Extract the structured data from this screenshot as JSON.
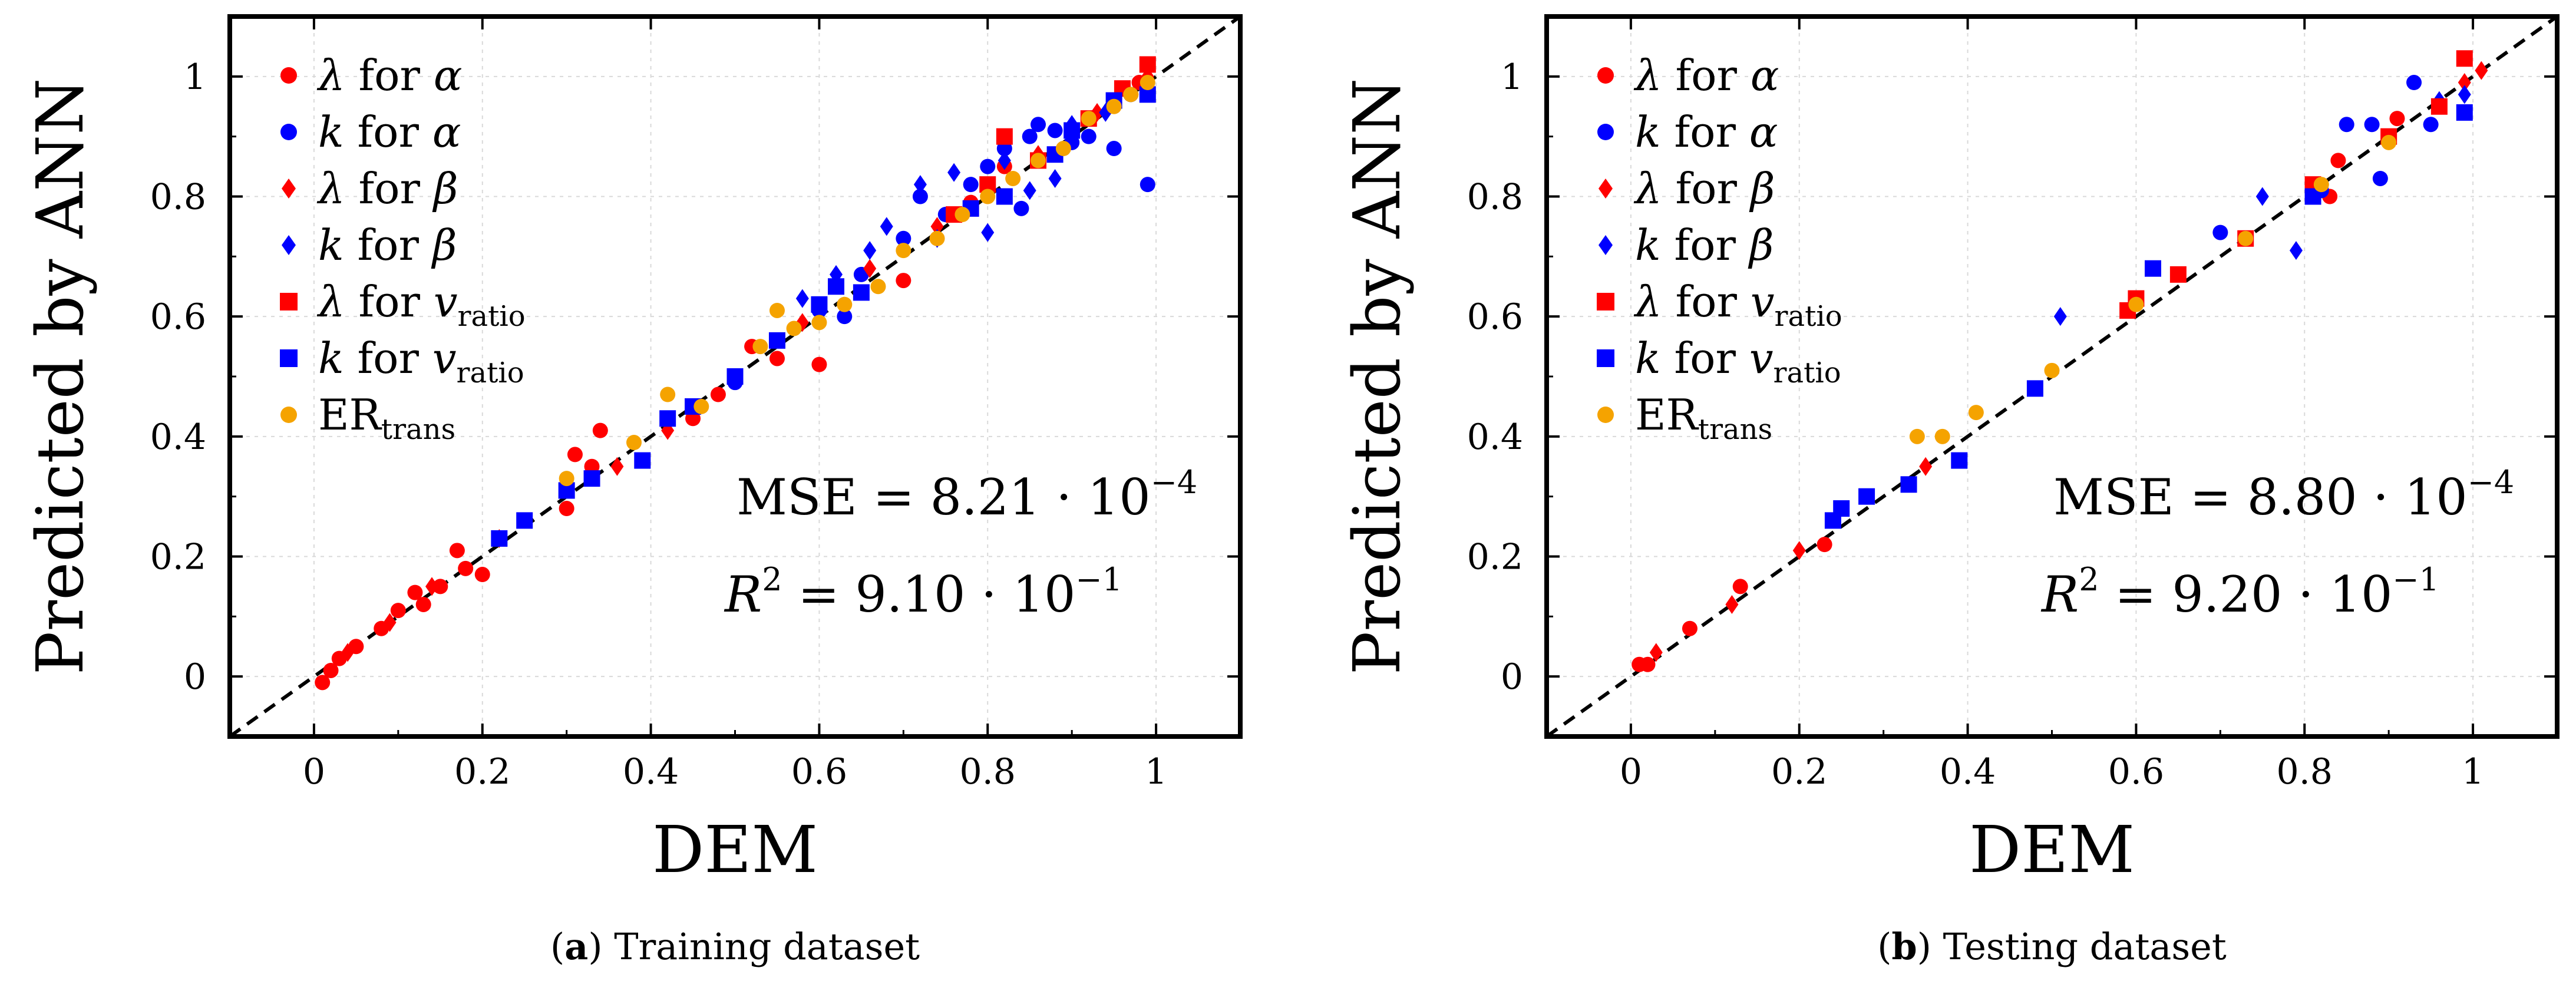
{
  "chart_data": [
    {
      "type": "scatter",
      "title": "",
      "xlabel": "DEM",
      "ylabel": "Predicted by ANN",
      "xlim": [
        -0.1,
        1.1
      ],
      "ylim": [
        -0.1,
        1.1
      ],
      "xticks": [
        "0",
        "0.2",
        "0.4",
        "0.6",
        "0.8",
        "1"
      ],
      "yticks": [
        "0",
        "0.2",
        "0.4",
        "0.6",
        "0.8",
        "1"
      ],
      "grid": true,
      "reference_line": "y = x (dashed)",
      "legend_position": "top-left",
      "caption": {
        "label": "a",
        "text": "Training dataset"
      },
      "stats": {
        "mse_label": "MSE",
        "mse_value": "8.21",
        "mse_exp": "−4",
        "r2_label": "R",
        "r2_sup": "2",
        "r2_value": "9.10",
        "r2_exp": "−1",
        "base": "10",
        "equals": "=",
        "dot": "·"
      },
      "series": [
        {
          "name_sym": "λ",
          "name_mid": " for ",
          "name_sub_sym": "α",
          "name_sub": "",
          "color": "#ff0000",
          "marker": "circle",
          "points": [
            [
              0.01,
              -0.01
            ],
            [
              0.02,
              0.01
            ],
            [
              0.03,
              0.03
            ],
            [
              0.05,
              0.05
            ],
            [
              0.08,
              0.08
            ],
            [
              0.1,
              0.11
            ],
            [
              0.12,
              0.14
            ],
            [
              0.13,
              0.12
            ],
            [
              0.15,
              0.15
            ],
            [
              0.17,
              0.21
            ],
            [
              0.18,
              0.18
            ],
            [
              0.2,
              0.17
            ],
            [
              0.3,
              0.28
            ],
            [
              0.31,
              0.37
            ],
            [
              0.33,
              0.35
            ],
            [
              0.34,
              0.41
            ],
            [
              0.45,
              0.43
            ],
            [
              0.48,
              0.47
            ],
            [
              0.52,
              0.55
            ],
            [
              0.55,
              0.53
            ],
            [
              0.6,
              0.52
            ],
            [
              0.65,
              0.64
            ],
            [
              0.7,
              0.66
            ],
            [
              0.78,
              0.79
            ],
            [
              0.82,
              0.85
            ],
            [
              0.88,
              0.87
            ],
            [
              0.92,
              0.93
            ],
            [
              0.95,
              0.96
            ],
            [
              0.98,
              0.99
            ]
          ]
        },
        {
          "name_sym": "k",
          "name_mid": " for ",
          "name_sub_sym": "α",
          "name_sub": "",
          "color": "#0000ff",
          "marker": "circle",
          "points": [
            [
              0.5,
              0.49
            ],
            [
              0.55,
              0.56
            ],
            [
              0.6,
              0.61
            ],
            [
              0.63,
              0.6
            ],
            [
              0.65,
              0.67
            ],
            [
              0.7,
              0.73
            ],
            [
              0.72,
              0.8
            ],
            [
              0.75,
              0.77
            ],
            [
              0.78,
              0.82
            ],
            [
              0.8,
              0.85
            ],
            [
              0.82,
              0.88
            ],
            [
              0.84,
              0.78
            ],
            [
              0.85,
              0.9
            ],
            [
              0.86,
              0.92
            ],
            [
              0.88,
              0.91
            ],
            [
              0.9,
              0.89
            ],
            [
              0.92,
              0.9
            ],
            [
              0.95,
              0.88
            ],
            [
              0.97,
              0.97
            ],
            [
              0.99,
              0.82
            ]
          ]
        },
        {
          "name_sym": "λ",
          "name_mid": " for ",
          "name_sub_sym": "β",
          "name_sub": "",
          "color": "#ff0000",
          "marker": "diamond",
          "points": [
            [
              0.04,
              0.04
            ],
            [
              0.09,
              0.09
            ],
            [
              0.14,
              0.15
            ],
            [
              0.22,
              0.23
            ],
            [
              0.36,
              0.35
            ],
            [
              0.42,
              0.41
            ],
            [
              0.58,
              0.59
            ],
            [
              0.66,
              0.68
            ],
            [
              0.74,
              0.75
            ],
            [
              0.86,
              0.87
            ],
            [
              0.93,
              0.94
            ],
            [
              0.99,
              1.0
            ]
          ]
        },
        {
          "name_sym": "k",
          "name_mid": " for ",
          "name_sub_sym": "β",
          "name_sub": "",
          "color": "#0000ff",
          "marker": "diamond",
          "points": [
            [
              0.58,
              0.63
            ],
            [
              0.62,
              0.67
            ],
            [
              0.66,
              0.71
            ],
            [
              0.68,
              0.75
            ],
            [
              0.72,
              0.82
            ],
            [
              0.74,
              0.73
            ],
            [
              0.76,
              0.84
            ],
            [
              0.8,
              0.74
            ],
            [
              0.82,
              0.86
            ],
            [
              0.85,
              0.81
            ],
            [
              0.88,
              0.83
            ],
            [
              0.9,
              0.92
            ],
            [
              0.94,
              0.94
            ]
          ]
        },
        {
          "name_sym": "λ",
          "name_mid": " for ",
          "name_sub_sym": "v",
          "name_sub": "ratio",
          "color": "#ff0000",
          "marker": "square",
          "points": [
            [
              0.76,
              0.77
            ],
            [
              0.8,
              0.82
            ],
            [
              0.82,
              0.9
            ],
            [
              0.86,
              0.86
            ],
            [
              0.92,
              0.93
            ],
            [
              0.96,
              0.98
            ],
            [
              0.99,
              1.02
            ]
          ]
        },
        {
          "name_sym": "k",
          "name_mid": " for ",
          "name_sub_sym": "v",
          "name_sub": "ratio",
          "color": "#0000ff",
          "marker": "square",
          "points": [
            [
              0.22,
              0.23
            ],
            [
              0.25,
              0.26
            ],
            [
              0.3,
              0.31
            ],
            [
              0.33,
              0.33
            ],
            [
              0.39,
              0.36
            ],
            [
              0.42,
              0.43
            ],
            [
              0.45,
              0.45
            ],
            [
              0.5,
              0.5
            ],
            [
              0.55,
              0.56
            ],
            [
              0.6,
              0.62
            ],
            [
              0.62,
              0.65
            ],
            [
              0.65,
              0.64
            ],
            [
              0.78,
              0.78
            ],
            [
              0.82,
              0.8
            ],
            [
              0.88,
              0.87
            ],
            [
              0.9,
              0.91
            ],
            [
              0.95,
              0.96
            ],
            [
              0.99,
              0.97
            ]
          ]
        },
        {
          "name_sym": "ER",
          "name_mid": "",
          "name_sub_sym": "",
          "name_sub": "trans",
          "color": "#f5a300",
          "marker": "circle",
          "points": [
            [
              0.3,
              0.33
            ],
            [
              0.38,
              0.39
            ],
            [
              0.42,
              0.47
            ],
            [
              0.46,
              0.45
            ],
            [
              0.53,
              0.55
            ],
            [
              0.55,
              0.61
            ],
            [
              0.57,
              0.58
            ],
            [
              0.6,
              0.59
            ],
            [
              0.63,
              0.62
            ],
            [
              0.67,
              0.65
            ],
            [
              0.7,
              0.71
            ],
            [
              0.74,
              0.73
            ],
            [
              0.77,
              0.77
            ],
            [
              0.8,
              0.8
            ],
            [
              0.83,
              0.83
            ],
            [
              0.86,
              0.86
            ],
            [
              0.89,
              0.88
            ],
            [
              0.92,
              0.93
            ],
            [
              0.95,
              0.95
            ],
            [
              0.97,
              0.97
            ],
            [
              0.99,
              0.99
            ]
          ]
        }
      ]
    },
    {
      "type": "scatter",
      "title": "",
      "xlabel": "DEM",
      "ylabel": "Predicted by ANN",
      "xlim": [
        -0.1,
        1.1
      ],
      "ylim": [
        -0.1,
        1.1
      ],
      "xticks": [
        "0",
        "0.2",
        "0.4",
        "0.6",
        "0.8",
        "1"
      ],
      "yticks": [
        "0",
        "0.2",
        "0.4",
        "0.6",
        "0.8",
        "1"
      ],
      "grid": true,
      "reference_line": "y = x (dashed)",
      "legend_position": "top-left",
      "caption": {
        "label": "b",
        "text": "Testing dataset"
      },
      "stats": {
        "mse_label": "MSE",
        "mse_value": "8.80",
        "mse_exp": "−4",
        "r2_label": "R",
        "r2_sup": "2",
        "r2_value": "9.20",
        "r2_exp": "−1",
        "base": "10",
        "equals": "=",
        "dot": "·"
      },
      "series": [
        {
          "name_sym": "λ",
          "name_mid": " for ",
          "name_sub_sym": "α",
          "name_sub": "",
          "color": "#ff0000",
          "marker": "circle",
          "points": [
            [
              0.01,
              0.02
            ],
            [
              0.02,
              0.02
            ],
            [
              0.07,
              0.08
            ],
            [
              0.13,
              0.15
            ],
            [
              0.23,
              0.22
            ],
            [
              0.83,
              0.8
            ],
            [
              0.84,
              0.86
            ],
            [
              0.91,
              0.93
            ]
          ]
        },
        {
          "name_sym": "k",
          "name_mid": " for ",
          "name_sub_sym": "α",
          "name_sub": "",
          "color": "#0000ff",
          "marker": "circle",
          "points": [
            [
              0.7,
              0.74
            ],
            [
              0.82,
              0.81
            ],
            [
              0.85,
              0.92
            ],
            [
              0.88,
              0.92
            ],
            [
              0.89,
              0.83
            ],
            [
              0.93,
              0.99
            ],
            [
              0.95,
              0.92
            ]
          ]
        },
        {
          "name_sym": "λ",
          "name_mid": " for ",
          "name_sub_sym": "β",
          "name_sub": "",
          "color": "#ff0000",
          "marker": "diamond",
          "points": [
            [
              0.03,
              0.04
            ],
            [
              0.12,
              0.12
            ],
            [
              0.2,
              0.21
            ],
            [
              0.35,
              0.35
            ],
            [
              0.99,
              0.99
            ],
            [
              1.01,
              1.01
            ]
          ]
        },
        {
          "name_sym": "k",
          "name_mid": " for ",
          "name_sub_sym": "β",
          "name_sub": "",
          "color": "#0000ff",
          "marker": "diamond",
          "points": [
            [
              0.51,
              0.6
            ],
            [
              0.75,
              0.8
            ],
            [
              0.79,
              0.71
            ],
            [
              0.96,
              0.96
            ],
            [
              0.99,
              0.97
            ]
          ]
        },
        {
          "name_sym": "λ",
          "name_mid": " for ",
          "name_sub_sym": "v",
          "name_sub": "ratio",
          "color": "#ff0000",
          "marker": "square",
          "points": [
            [
              0.59,
              0.61
            ],
            [
              0.6,
              0.63
            ],
            [
              0.65,
              0.67
            ],
            [
              0.73,
              0.73
            ],
            [
              0.81,
              0.82
            ],
            [
              0.9,
              0.9
            ],
            [
              0.96,
              0.95
            ],
            [
              0.99,
              1.03
            ]
          ]
        },
        {
          "name_sym": "k",
          "name_mid": " for ",
          "name_sub_sym": "v",
          "name_sub": "ratio",
          "color": "#0000ff",
          "marker": "square",
          "points": [
            [
              0.24,
              0.26
            ],
            [
              0.25,
              0.28
            ],
            [
              0.28,
              0.3
            ],
            [
              0.33,
              0.32
            ],
            [
              0.39,
              0.36
            ],
            [
              0.48,
              0.48
            ],
            [
              0.62,
              0.68
            ],
            [
              0.81,
              0.8
            ],
            [
              0.99,
              0.94
            ]
          ]
        },
        {
          "name_sym": "ER",
          "name_mid": "",
          "name_sub_sym": "",
          "name_sub": "trans",
          "color": "#f5a300",
          "marker": "circle",
          "points": [
            [
              0.34,
              0.4
            ],
            [
              0.37,
              0.4
            ],
            [
              0.41,
              0.44
            ],
            [
              0.5,
              0.51
            ],
            [
              0.6,
              0.62
            ],
            [
              0.73,
              0.73
            ],
            [
              0.82,
              0.82
            ],
            [
              0.9,
              0.89
            ]
          ]
        }
      ]
    }
  ]
}
